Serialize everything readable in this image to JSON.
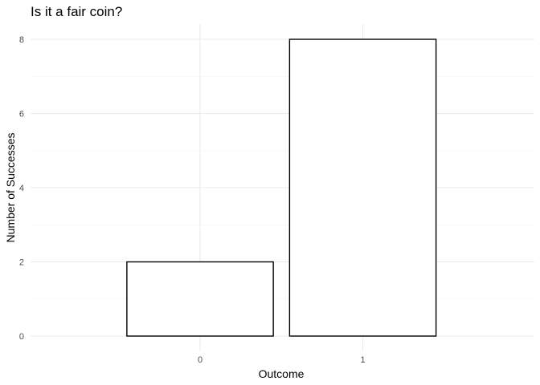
{
  "chart_data": {
    "type": "bar",
    "title": "Is it a fair coin?",
    "xlabel": "Outcome",
    "ylabel": "Number of Successes",
    "categories": [
      "0",
      "1"
    ],
    "values": [
      2,
      8
    ],
    "ylim": [
      0,
      8
    ],
    "y_ticks": [
      "0",
      "2",
      "4",
      "6",
      "8"
    ],
    "grid": true,
    "legend": "none",
    "colors": {
      "bar_fill": "#ffffff",
      "bar_stroke": "#000000",
      "grid": "#ebebeb"
    }
  }
}
